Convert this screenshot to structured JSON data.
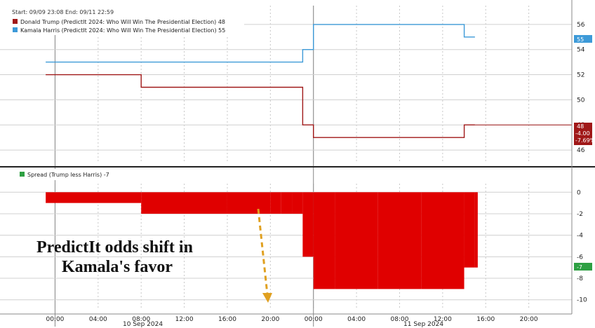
{
  "header": {
    "range": "Start: 09/09 23:08 End: 09/11 22:59"
  },
  "annotation": {
    "line1": "PredictIt odds shift in",
    "line2": "Kamala's favor"
  },
  "colors": {
    "trump": "#a01818",
    "harris": "#3d9ad8",
    "spread": "#e00000",
    "spread_legend": "#2ea043",
    "arrow": "#e0a020"
  },
  "chart_data": [
    {
      "type": "line",
      "title": "",
      "legend_position": "top-left",
      "grid": true,
      "ylim": [
        45,
        57.5
      ],
      "yticks": [
        46,
        48,
        50,
        52,
        54,
        56
      ],
      "x": [
        "09/09 23:08",
        "09/10 08:00",
        "09/10 16:00",
        "09/10 20:00",
        "09/10 21:00",
        "09/10 22:00",
        "09/10 23:00",
        "09/11 00:00",
        "09/11 02:00",
        "09/11 06:00",
        "09/11 10:00",
        "09/11 14:00",
        "09/11 15:00"
      ],
      "series": [
        {
          "name": "Donald Trump (PredictIt 2024: Who Will Win The Presidential Election)",
          "legend_label": "Donald Trump (PredictIt 2024: Who Will Win The Presidential Election) 48",
          "last_value": "48",
          "change": "-4.00",
          "pct_change": "-7.69%",
          "values": [
            52,
            51,
            51,
            51,
            51,
            51,
            48,
            47,
            47,
            47,
            47,
            48,
            48
          ]
        },
        {
          "name": "Kamala Harris (PredictIt 2024: Who Will Win The Presidential Election)",
          "legend_label": "Kamala Harris (PredictIt 2024: Who Will Win The Presidential Election) 55",
          "last_value": "55",
          "values": [
            53,
            53,
            53,
            53,
            53,
            53,
            54,
            56,
            56,
            56,
            56,
            55,
            55
          ]
        }
      ]
    },
    {
      "type": "bar",
      "title": "",
      "legend_position": "top-left",
      "grid": true,
      "ylim": [
        -10.8,
        0.8
      ],
      "yticks": [
        0,
        -2,
        -4,
        -6,
        -8,
        -10
      ],
      "series": [
        {
          "name": "Spread (Trump less Harris)",
          "legend_label": "Spread (Trump less Harris) -7",
          "last_value": "-7",
          "x": [
            "09/09 23:08",
            "09/10 08:00",
            "09/10 16:00",
            "09/10 20:00",
            "09/10 21:00",
            "09/10 22:00",
            "09/10 23:00",
            "09/11 00:00",
            "09/11 02:00",
            "09/11 06:00",
            "09/11 10:00",
            "09/11 14:00",
            "09/11 15:00"
          ],
          "values": [
            -1,
            -2,
            -2,
            -2,
            -2,
            -2,
            -6,
            -9,
            -9,
            -9,
            -9,
            -7,
            -7
          ]
        }
      ]
    }
  ],
  "x_axis": {
    "tick_labels": [
      "00:00",
      "04:00",
      "08:00",
      "12:00",
      "16:00",
      "20:00",
      "00:00",
      "04:00",
      "08:00",
      "12:00",
      "16:00",
      "20:00"
    ],
    "date_labels": [
      "10 Sep 2024",
      "11 Sep 2024"
    ]
  }
}
